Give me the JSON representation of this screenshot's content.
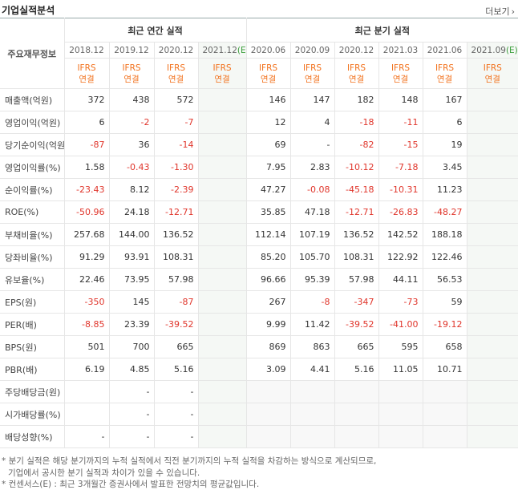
{
  "header": {
    "title": "기업실적분석",
    "more": "더보기"
  },
  "table": {
    "corner": "주요재무정보",
    "groups": [
      {
        "label": "최근 연간 실적",
        "span": 4
      },
      {
        "label": "최근 분기 실적",
        "span": 6
      }
    ],
    "columns": [
      {
        "date": "2018.12",
        "basis": [
          "IFRS",
          "연결"
        ]
      },
      {
        "date": "2019.12",
        "basis": [
          "IFRS",
          "연결"
        ]
      },
      {
        "date": "2020.12",
        "basis": [
          "IFRS",
          "연결"
        ]
      },
      {
        "date": "2021.12",
        "estimate": "(E)",
        "basis": [
          "IFRS",
          "연결"
        ]
      },
      {
        "date": "2020.06",
        "basis": [
          "IFRS",
          "연결"
        ]
      },
      {
        "date": "2020.09",
        "basis": [
          "IFRS",
          "연결"
        ]
      },
      {
        "date": "2020.12",
        "basis": [
          "IFRS",
          "연결"
        ]
      },
      {
        "date": "2021.03",
        "basis": [
          "IFRS",
          "연결"
        ]
      },
      {
        "date": "2021.06",
        "basis": [
          "IFRS",
          "연결"
        ]
      },
      {
        "date": "2021.09",
        "estimate": "(E)",
        "basis": [
          "IFRS",
          "연결"
        ]
      }
    ],
    "rows": [
      {
        "label": "매출액(억원)",
        "cells": [
          "372",
          "438",
          "572",
          null,
          "146",
          "147",
          "182",
          "148",
          "167",
          null
        ]
      },
      {
        "label": "영업이익(억원)",
        "cells": [
          "6",
          "-2",
          "-7",
          null,
          "12",
          "4",
          "-18",
          "-11",
          "6",
          null
        ]
      },
      {
        "label": "당기순이익(억원)",
        "cells": [
          "-87",
          "36",
          "-14",
          null,
          "69",
          "-",
          "-82",
          "-15",
          "19",
          null
        ]
      },
      {
        "label": "영업이익률(%)",
        "cells": [
          "1.58",
          "-0.43",
          "-1.30",
          null,
          "7.95",
          "2.83",
          "-10.12",
          "-7.18",
          "3.45",
          null
        ]
      },
      {
        "label": "순이익률(%)",
        "cells": [
          "-23.43",
          "8.12",
          "-2.39",
          null,
          "47.27",
          "-0.08",
          "-45.18",
          "-10.31",
          "11.23",
          null
        ]
      },
      {
        "label": "ROE(%)",
        "cells": [
          "-50.96",
          "24.18",
          "-12.71",
          null,
          "35.85",
          "47.18",
          "-12.71",
          "-26.83",
          "-48.27",
          null
        ]
      },
      {
        "label": "부채비율(%)",
        "cells": [
          "257.68",
          "144.00",
          "136.52",
          null,
          "112.14",
          "107.19",
          "136.52",
          "142.52",
          "188.18",
          null
        ]
      },
      {
        "label": "당좌비율(%)",
        "cells": [
          "91.29",
          "93.91",
          "108.31",
          null,
          "85.20",
          "105.70",
          "108.31",
          "122.92",
          "122.46",
          null
        ]
      },
      {
        "label": "유보율(%)",
        "cells": [
          "22.46",
          "73.95",
          "57.98",
          null,
          "96.66",
          "95.39",
          "57.98",
          "44.11",
          "56.53",
          null
        ]
      },
      {
        "label": "EPS(원)",
        "cells": [
          "-350",
          "145",
          "-87",
          null,
          "267",
          "-8",
          "-347",
          "-73",
          "59",
          null
        ]
      },
      {
        "label": "PER(배)",
        "cells": [
          "-8.85",
          "23.39",
          "-39.52",
          null,
          "9.99",
          "11.42",
          "-39.52",
          "-41.00",
          "-19.12",
          null
        ]
      },
      {
        "label": "BPS(원)",
        "cells": [
          "501",
          "700",
          "665",
          null,
          "869",
          "863",
          "665",
          "595",
          "658",
          null
        ]
      },
      {
        "label": "PBR(배)",
        "cells": [
          "6.19",
          "4.85",
          "5.16",
          null,
          "3.09",
          "4.41",
          "5.16",
          "11.05",
          "10.71",
          null
        ]
      },
      {
        "label": "주당배당금(원)",
        "cells": [
          null,
          "-",
          "-",
          null,
          null,
          null,
          null,
          null,
          null,
          null
        ]
      },
      {
        "label": "시가배당률(%)",
        "cells": [
          null,
          "-",
          "-",
          null,
          null,
          null,
          null,
          null,
          null,
          null
        ]
      },
      {
        "label": "배당성향(%)",
        "cells": [
          "-",
          "-",
          "-",
          null,
          null,
          null,
          null,
          null,
          null,
          null
        ]
      }
    ]
  },
  "notes": [
    "* 분기 실적은 해당 분기까지의 누적 실적에서 직전 분기까지의 누적 실적을 차감하는 방식으로 계산되므로,",
    "기업에서 공시한 분기 실적과 차이가 있을 수 있습니다.",
    "* 컨센서스(E) : 최근 3개월간 증권사에서 발표한 전망치의 평균값입니다."
  ]
}
